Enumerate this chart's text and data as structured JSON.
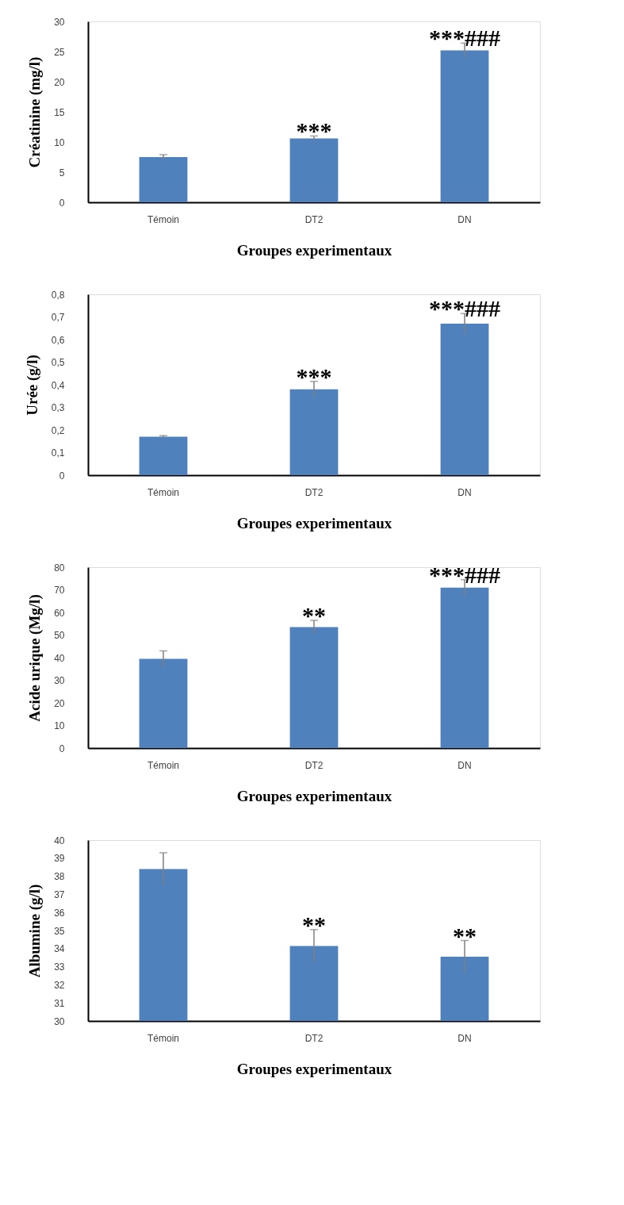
{
  "chart_data": [
    {
      "type": "bar",
      "categories": [
        "Témoin",
        "DT2",
        "DN"
      ],
      "values": [
        7.5,
        10.6,
        25.2
      ],
      "errors": [
        0.4,
        0.4,
        1.2
      ],
      "color": "#4f81bd",
      "ylabel": "Créatinine (mg/l)",
      "xlabel": "Groupes experimentaux",
      "ylim": [
        0,
        30
      ],
      "yticks": [
        0,
        5,
        10,
        15,
        20,
        25,
        30
      ],
      "grid": false,
      "annotations": [
        {
          "text": "***",
          "x": "DT2",
          "y": 11.0
        },
        {
          "text": "***###",
          "x": "DN",
          "y": 26.4
        }
      ]
    },
    {
      "type": "bar",
      "categories": [
        "Témoin",
        "DT2",
        "DN"
      ],
      "values": [
        0.17,
        0.38,
        0.67
      ],
      "errors": [
        0.005,
        0.035,
        0.045
      ],
      "color": "#4f81bd",
      "ylabel": "Urée (g/l)",
      "xlabel": "Groupes experimentaux",
      "ylim": [
        0,
        0.8
      ],
      "yticks": [
        0,
        {
          "value": 0.1,
          "label": "0,1"
        },
        {
          "value": 0.2,
          "label": "0,2"
        },
        {
          "value": 0.3,
          "label": "0,3"
        },
        {
          "value": 0.4,
          "label": "0,4"
        },
        {
          "value": 0.5,
          "label": "0,5"
        },
        {
          "value": 0.6,
          "label": "0,6"
        },
        {
          "value": 0.7,
          "label": "0,7"
        },
        {
          "value": 0.8,
          "label": "0,8"
        }
      ],
      "grid": false,
      "annotations": [
        {
          "text": "***",
          "x": "DT2",
          "y": 0.415
        },
        {
          "text": "***###",
          "x": "DN",
          "y": 0.715
        }
      ]
    },
    {
      "type": "bar",
      "categories": [
        "Témoin",
        "DT2",
        "DN"
      ],
      "values": [
        39.5,
        53.5,
        71
      ],
      "errors": [
        3.5,
        3,
        3.5
      ],
      "color": "#4f81bd",
      "ylabel": "Acide urique (Mg/l)",
      "xlabel": "Groupes experimentaux",
      "ylim": [
        0,
        80
      ],
      "yticks": [
        0,
        10,
        20,
        30,
        40,
        50,
        60,
        70,
        80
      ],
      "grid": false,
      "annotations": [
        {
          "text": "**",
          "x": "DT2",
          "y": 56.5
        },
        {
          "text": "***###",
          "x": "DN",
          "y": 74.5
        }
      ]
    },
    {
      "type": "bar",
      "categories": [
        "Témoin",
        "DT2",
        "DN"
      ],
      "values": [
        38.4,
        34.15,
        33.55
      ],
      "errors": [
        0.9,
        0.9,
        0.9
      ],
      "color": "#4f81bd",
      "ylabel": "Albumine (g/l)",
      "xlabel": "Groupes experimentaux",
      "ylim": [
        30,
        40
      ],
      "yticks": [
        30,
        31,
        32,
        33,
        34,
        35,
        36,
        37,
        38,
        39,
        40
      ],
      "grid": false,
      "annotations": [
        {
          "text": "**",
          "x": "DT2",
          "y": 35.05
        },
        {
          "text": "**",
          "x": "DN",
          "y": 34.45
        }
      ]
    }
  ]
}
